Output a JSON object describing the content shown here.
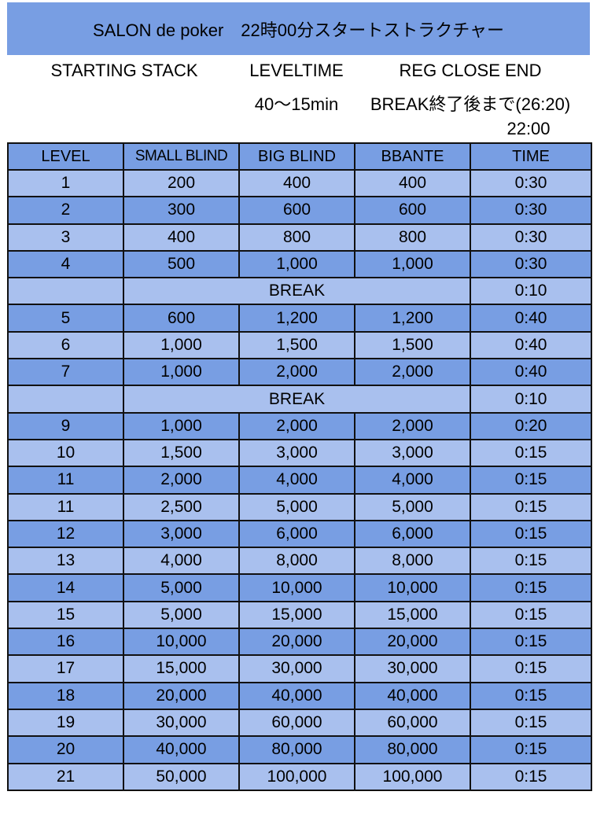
{
  "title": "SALON de poker　22時00分スタートストラクチャー",
  "info": {
    "starting_stack_label": "STARTING STACK",
    "leveltime_label": "LEVELTIME",
    "reg_close_label": "REG CLOSE END",
    "leveltime_value": "40〜15min",
    "reg_close_value": "BREAK終了後まで(26:20)",
    "start_time": "22:00"
  },
  "colors": {
    "dark": "#789ee3",
    "light": "#a9c0ee"
  },
  "table": {
    "headers": [
      "LEVEL",
      "SMALL BLIND",
      "BIG BLIND",
      "BBANTE",
      "TIME"
    ],
    "rows": [
      [
        "1",
        "200",
        "400",
        "400",
        "0:30"
      ],
      [
        "2",
        "300",
        "600",
        "600",
        "0:30"
      ],
      [
        "3",
        "400",
        "800",
        "800",
        "0:30"
      ],
      [
        "4",
        "500",
        "1,000",
        "1,000",
        "0:30"
      ],
      {
        "break": "BREAK",
        "time": "0:10"
      },
      [
        "5",
        "600",
        "1,200",
        "1,200",
        "0:40"
      ],
      [
        "6",
        "1,000",
        "1,500",
        "1,500",
        "0:40"
      ],
      [
        "7",
        "1,000",
        "2,000",
        "2,000",
        "0:40"
      ],
      {
        "break": "BREAK",
        "time": "0:10"
      },
      [
        "9",
        "1,000",
        "2,000",
        "2,000",
        "0:20"
      ],
      [
        "10",
        "1,500",
        "3,000",
        "3,000",
        "0:15"
      ],
      [
        "11",
        "2,000",
        "4,000",
        "4,000",
        "0:15"
      ],
      [
        "11",
        "2,500",
        "5,000",
        "5,000",
        "0:15"
      ],
      [
        "12",
        "3,000",
        "6,000",
        "6,000",
        "0:15"
      ],
      [
        "13",
        "4,000",
        "8,000",
        "8,000",
        "0:15"
      ],
      [
        "14",
        "5,000",
        "10,000",
        "10,000",
        "0:15"
      ],
      [
        "15",
        "5,000",
        "15,000",
        "15,000",
        "0:15"
      ],
      [
        "16",
        "10,000",
        "20,000",
        "20,000",
        "0:15"
      ],
      [
        "17",
        "15,000",
        "30,000",
        "30,000",
        "0:15"
      ],
      [
        "18",
        "20,000",
        "40,000",
        "40,000",
        "0:15"
      ],
      [
        "19",
        "30,000",
        "60,000",
        "60,000",
        "0:15"
      ],
      [
        "20",
        "40,000",
        "80,000",
        "80,000",
        "0:15"
      ],
      [
        "21",
        "50,000",
        "100,000",
        "100,000",
        "0:15"
      ]
    ]
  }
}
